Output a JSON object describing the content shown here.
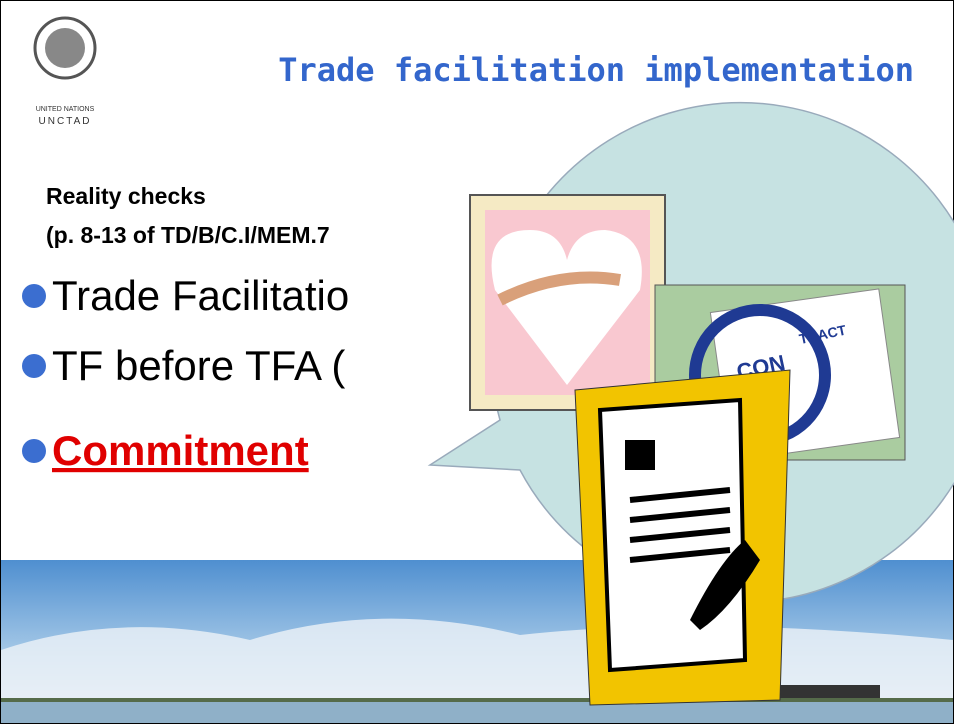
{
  "logo": {
    "line1": "UNITED NATIONS",
    "line2": "UNCTAD"
  },
  "header": {
    "title": "Trade facilitation implementation"
  },
  "body": {
    "heading": "Reality checks",
    "reference": "(p. 8-13 of TD/B/C.I/MEM.7",
    "bullets": [
      "Trade Facilitatio",
      "TF before TFA (",
      "Commitment"
    ]
  },
  "clipart": {
    "contract_left": "CON",
    "contract_right": "TRACT"
  }
}
